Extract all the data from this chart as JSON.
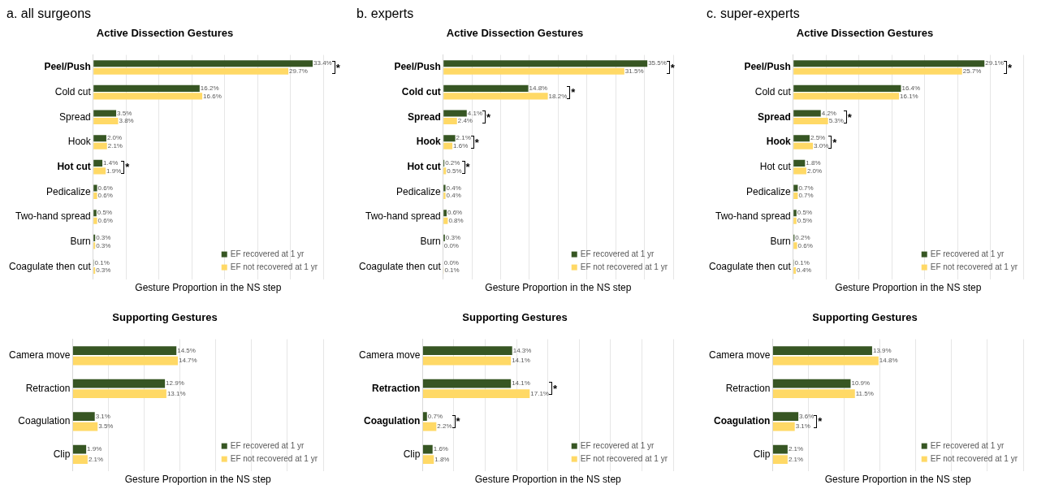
{
  "chart_data": [
    {
      "type": "bar",
      "orientation": "horizontal",
      "subtitle": "a. all surgeons",
      "title": "Active Dissection Gestures",
      "xlabel": "Gesture Proportion in the NS step",
      "categories": [
        "Peel/Push",
        "Cold cut",
        "Spread",
        "Hook",
        "Hot cut",
        "Pedicalize",
        "Two-hand spread",
        "Burn",
        "Coagulate then cut"
      ],
      "series": [
        {
          "name": "EF recovered at 1 yr",
          "color": "#375623",
          "values": [
            33.4,
            16.2,
            3.5,
            2.0,
            1.4,
            0.6,
            0.5,
            0.3,
            0.1
          ],
          "value_labels": [
            "33.4%",
            "16.2%",
            "3.5%",
            "2.0%",
            "1.4%",
            "0.6%",
            "0.5%",
            "0.3%",
            "0.1%"
          ]
        },
        {
          "name": "EF not recovered at 1 yr",
          "color": "#ffd966",
          "values": [
            29.7,
            16.6,
            3.8,
            2.1,
            1.9,
            0.6,
            0.6,
            0.3,
            0.3
          ],
          "value_labels": [
            "29.7%",
            "16.6%",
            "3.8%",
            "2.1%",
            "1.9%",
            "0.6%",
            "0.6%",
            "0.3%",
            "0.3%"
          ]
        }
      ],
      "xlim": [
        0,
        35
      ],
      "xticks": [
        {
          "value": 0,
          "label": null
        },
        {
          "value": 5,
          "label": null
        },
        {
          "value": 10,
          "label": null
        },
        {
          "value": 15,
          "label": null
        },
        {
          "value": 20,
          "label": null
        },
        {
          "value": 25,
          "label": null
        },
        {
          "value": 30,
          "label": null
        },
        {
          "value": 35,
          "label": null
        }
      ],
      "grid": "x",
      "tick_labels": "y",
      "legend": "bottom right",
      "annotations": [
        {
          "text": "*",
          "y": "Peel/Push",
          "x": 33.4
        },
        {
          "text": "*",
          "y": "Hot cut",
          "x": 1.9
        }
      ]
    },
    {
      "type": "bar",
      "orientation": "horizontal",
      "subtitle": "b. experts",
      "title": "Active Dissection Gestures",
      "xlabel": "Gesture Proportion in the NS step",
      "categories": [
        "Peel/Push",
        "Cold cut",
        "Spread",
        "Hook",
        "Hot cut",
        "Pedicalize",
        "Two-hand spread",
        "Burn",
        "Coagulate then cut"
      ],
      "series": [
        {
          "name": "EF recovered at 1 yr",
          "color": "#375623",
          "values": [
            35.5,
            14.8,
            4.1,
            2.1,
            0.2,
            0.4,
            0.6,
            0.3,
            0.0
          ],
          "value_labels": [
            "35.5%",
            "14.8%",
            "4.1%",
            "2.1%",
            "0.2%",
            "0.4%",
            "0.6%",
            "0.3%",
            "0.0%"
          ]
        },
        {
          "name": "EF not recovered at 1 yr",
          "color": "#ffd966",
          "values": [
            31.5,
            18.2,
            2.4,
            1.6,
            0.5,
            0.4,
            0.8,
            0.0,
            0.1
          ],
          "value_labels": [
            "31.5%",
            "18.2%",
            "2.4%",
            "1.6%",
            "0.5%",
            "0.4%",
            "0.8%",
            "0.0%",
            "0.1%"
          ]
        }
      ],
      "xlim": [
        0,
        40
      ],
      "xticks": [
        {
          "value": 0,
          "label": null
        },
        {
          "value": 5,
          "label": null
        },
        {
          "value": 10,
          "label": null
        },
        {
          "value": 15,
          "label": null
        },
        {
          "value": 20,
          "label": null
        },
        {
          "value": 25,
          "label": null
        },
        {
          "value": 30,
          "label": null
        },
        {
          "value": 35,
          "label": null
        },
        {
          "value": 40,
          "label": null
        }
      ],
      "grid": "x",
      "tick_labels": "y",
      "legend": "bottom right",
      "annotations": [
        {
          "text": "*",
          "y": "Peel/Push",
          "x": 35.5
        },
        {
          "text": "*",
          "y": "Cold cut",
          "x": 18.2
        },
        {
          "text": "*",
          "y": "Spread",
          "x": 4.1
        },
        {
          "text": "*",
          "y": "Hook",
          "x": 2.1
        },
        {
          "text": "*",
          "y": "Hot cut",
          "x": 0.5
        }
      ]
    },
    {
      "type": "bar",
      "orientation": "horizontal",
      "subtitle": "c. super-experts",
      "title": "Active Dissection Gestures",
      "xlabel": "Gesture Proportion in the NS step",
      "categories": [
        "Peel/Push",
        "Cold cut",
        "Spread",
        "Hook",
        "Hot cut",
        "Pedicalize",
        "Two-hand spread",
        "Burn",
        "Coagulate then cut"
      ],
      "series": [
        {
          "name": "EF recovered at 1 yr",
          "color": "#375623",
          "values": [
            29.1,
            16.4,
            4.2,
            2.5,
            1.8,
            0.7,
            0.5,
            0.2,
            0.1
          ],
          "value_labels": [
            "29.1%",
            "16.4%",
            "4.2%",
            "2.5%",
            "1.8%",
            "0.7%",
            "0.5%",
            "0.2%",
            "0.1%"
          ]
        },
        {
          "name": "EF not recovered at 1 yr",
          "color": "#ffd966",
          "values": [
            25.7,
            16.1,
            5.3,
            3.0,
            2.0,
            0.7,
            0.5,
            0.6,
            0.4
          ],
          "value_labels": [
            "25.7%",
            "16.1%",
            "5.3%",
            "3.0%",
            "2.0%",
            "0.7%",
            "0.5%",
            "0.6%",
            "0.4%"
          ]
        }
      ],
      "xlim": [
        0,
        35
      ],
      "xticks": [
        {
          "value": 0,
          "label": null
        },
        {
          "value": 5,
          "label": null
        },
        {
          "value": 10,
          "label": null
        },
        {
          "value": 15,
          "label": null
        },
        {
          "value": 20,
          "label": null
        },
        {
          "value": 25,
          "label": null
        },
        {
          "value": 30,
          "label": null
        },
        {
          "value": 35,
          "label": null
        }
      ],
      "grid": "x",
      "tick_labels": "y",
      "legend": "bottom right",
      "annotations": [
        {
          "text": "*",
          "y": "Peel/Push",
          "x": 29.1
        },
        {
          "text": "*",
          "y": "Spread",
          "x": 5.3
        },
        {
          "text": "*",
          "y": "Hook",
          "x": 3.0
        }
      ]
    },
    {
      "type": "bar",
      "orientation": "horizontal",
      "title": "Supporting Gestures",
      "xlabel": "Gesture Proportion in the NS step",
      "categories": [
        "Camera move",
        "Retraction",
        "Coagulation",
        "Clip"
      ],
      "series": [
        {
          "name": "EF recovered at 1 yr",
          "color": "#375623",
          "values": [
            14.5,
            12.9,
            3.1,
            1.9
          ],
          "value_labels": [
            "14.5%",
            "12.9%",
            "3.1%",
            "1.9%"
          ]
        },
        {
          "name": "EF not recovered at 1 yr",
          "color": "#ffd966",
          "values": [
            14.7,
            13.1,
            3.5,
            2.1
          ],
          "value_labels": [
            "14.7%",
            "13.1%",
            "3.5%",
            "2.1%"
          ]
        }
      ],
      "xlim": [
        0,
        35
      ],
      "xticks": [
        {
          "value": 0,
          "label": null
        },
        {
          "value": 5,
          "label": null
        },
        {
          "value": 10,
          "label": null
        },
        {
          "value": 15,
          "label": null
        },
        {
          "value": 20,
          "label": null
        },
        {
          "value": 25,
          "label": null
        },
        {
          "value": 30,
          "label": null
        },
        {
          "value": 35,
          "label": null
        }
      ],
      "grid": "x",
      "tick_labels": "y",
      "legend": "bottom right"
    },
    {
      "type": "bar",
      "orientation": "horizontal",
      "title": "Supporting Gestures",
      "xlabel": "Gesture Proportion in the NS step",
      "categories": [
        "Camera move",
        "Retraction",
        "Coagulation",
        "Clip"
      ],
      "series": [
        {
          "name": "EF recovered at 1 yr",
          "color": "#375623",
          "values": [
            14.3,
            14.1,
            0.7,
            1.6
          ],
          "value_labels": [
            "14.3%",
            "14.1%",
            "0.7%",
            "1.6%"
          ]
        },
        {
          "name": "EF not recovered at 1 yr",
          "color": "#ffd966",
          "values": [
            14.1,
            17.1,
            2.2,
            1.8
          ],
          "value_labels": [
            "14.1%",
            "17.1%",
            "2.2%",
            "1.8%"
          ]
        }
      ],
      "xlim": [
        0,
        40
      ],
      "xticks": [
        {
          "value": 0,
          "label": null
        },
        {
          "value": 5,
          "label": null
        },
        {
          "value": 10,
          "label": null
        },
        {
          "value": 15,
          "label": null
        },
        {
          "value": 20,
          "label": null
        },
        {
          "value": 25,
          "label": null
        },
        {
          "value": 30,
          "label": null
        },
        {
          "value": 35,
          "label": null
        },
        {
          "value": 40,
          "label": null
        }
      ],
      "grid": "x",
      "tick_labels": "y",
      "legend": "bottom right",
      "annotations": [
        {
          "text": "*",
          "y": "Retraction",
          "x": 17.1
        },
        {
          "text": "*",
          "y": "Coagulation",
          "x": 2.2
        }
      ]
    },
    {
      "type": "bar",
      "orientation": "horizontal",
      "title": "Supporting Gestures",
      "xlabel": "Gesture Proportion in the NS step",
      "categories": [
        "Camera move",
        "Retraction",
        "Coagulation",
        "Clip"
      ],
      "series": [
        {
          "name": "EF recovered at 1 yr",
          "color": "#375623",
          "values": [
            13.9,
            10.9,
            3.6,
            2.1
          ],
          "value_labels": [
            "13.9%",
            "10.9%",
            "3.6%",
            "2.1%"
          ]
        },
        {
          "name": "EF not recovered at 1 yr",
          "color": "#ffd966",
          "values": [
            14.8,
            11.5,
            3.1,
            2.1
          ],
          "value_labels": [
            "14.8%",
            "11.5%",
            "3.1%",
            "2.1%"
          ]
        }
      ],
      "xlim": [
        0,
        35
      ],
      "xticks": [
        {
          "value": 0,
          "label": null
        },
        {
          "value": 5,
          "label": null
        },
        {
          "value": 10,
          "label": null
        },
        {
          "value": 15,
          "label": null
        },
        {
          "value": 20,
          "label": null
        },
        {
          "value": 25,
          "label": null
        },
        {
          "value": 30,
          "label": null
        },
        {
          "value": 35,
          "label": null
        }
      ],
      "grid": "x",
      "tick_labels": "y",
      "legend": "bottom right",
      "annotations": [
        {
          "text": "*",
          "y": "Coagulation",
          "x": 3.6
        }
      ]
    }
  ]
}
